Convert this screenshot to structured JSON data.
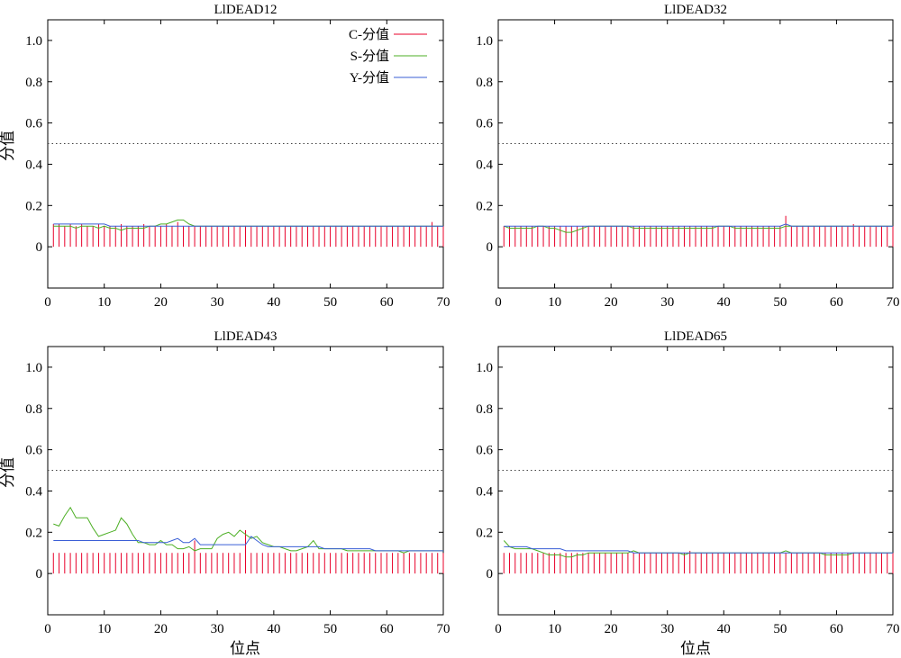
{
  "figure": {
    "ylabel": "分值",
    "xlabel": "位点"
  },
  "legend": {
    "items": [
      {
        "label": "C-分值",
        "color": "#e8002a"
      },
      {
        "label": "S-分值",
        "color": "#4caf24"
      },
      {
        "label": "Y-分值",
        "color": "#3a5fd6"
      }
    ]
  },
  "chart_data": [
    {
      "type": "line",
      "title": "LlDEAD12",
      "xlim": [
        0,
        70
      ],
      "ylim": [
        -0.2,
        1.1
      ],
      "xticks": [
        0,
        10,
        20,
        30,
        40,
        50,
        60,
        70
      ],
      "yticks": [
        0,
        0.2,
        0.4,
        0.6,
        0.8,
        1.0
      ],
      "ytick_labels": [
        "0",
        "0.2",
        "0.4",
        "0.6",
        "0.8",
        "1.0"
      ],
      "threshold": 0.5,
      "x_start": 1,
      "series": [
        {
          "name": "C-分值",
          "type": "stem",
          "color": "#e8002a",
          "values": [
            0.11,
            0.11,
            0.1,
            0.11,
            0.1,
            0.11,
            0.1,
            0.1,
            0.11,
            0.1,
            0.1,
            0.1,
            0.11,
            0.1,
            0.1,
            0.1,
            0.11,
            0.1,
            0.1,
            0.1,
            0.11,
            0.1,
            0.12,
            0.1,
            0.1,
            0.1,
            0.1,
            0.1,
            0.1,
            0.1,
            0.1,
            0.1,
            0.1,
            0.1,
            0.1,
            0.1,
            0.1,
            0.1,
            0.1,
            0.1,
            0.1,
            0.1,
            0.1,
            0.1,
            0.1,
            0.1,
            0.1,
            0.1,
            0.1,
            0.1,
            0.1,
            0.1,
            0.1,
            0.1,
            0.1,
            0.1,
            0.1,
            0.1,
            0.1,
            0.1,
            0.1,
            0.1,
            0.1,
            0.1,
            0.1,
            0.1,
            0.1,
            0.12,
            0.1,
            0.1
          ]
        },
        {
          "name": "S-分值",
          "type": "line",
          "color": "#4caf24",
          "values": [
            0.1,
            0.1,
            0.1,
            0.1,
            0.09,
            0.1,
            0.1,
            0.1,
            0.09,
            0.1,
            0.09,
            0.09,
            0.08,
            0.09,
            0.09,
            0.09,
            0.09,
            0.1,
            0.1,
            0.11,
            0.11,
            0.12,
            0.13,
            0.13,
            0.11,
            0.1,
            0.1,
            0.1,
            0.1,
            0.1,
            0.1,
            0.1,
            0.1,
            0.1,
            0.1,
            0.1,
            0.1,
            0.1,
            0.1,
            0.1,
            0.1,
            0.1,
            0.1,
            0.1,
            0.1,
            0.1,
            0.1,
            0.1,
            0.1,
            0.1,
            0.1,
            0.1,
            0.1,
            0.1,
            0.1,
            0.1,
            0.1,
            0.1,
            0.1,
            0.1,
            0.1,
            0.1,
            0.1,
            0.1,
            0.1,
            0.1,
            0.1,
            0.1,
            0.1,
            0.1
          ]
        },
        {
          "name": "Y-分值",
          "type": "line",
          "color": "#3a5fd6",
          "values": [
            0.11,
            0.11,
            0.11,
            0.11,
            0.11,
            0.11,
            0.11,
            0.11,
            0.11,
            0.11,
            0.1,
            0.1,
            0.1,
            0.1,
            0.1,
            0.1,
            0.1,
            0.1,
            0.1,
            0.1,
            0.1,
            0.1,
            0.1,
            0.1,
            0.1,
            0.1,
            0.1,
            0.1,
            0.1,
            0.1,
            0.1,
            0.1,
            0.1,
            0.1,
            0.1,
            0.1,
            0.1,
            0.1,
            0.1,
            0.1,
            0.1,
            0.1,
            0.1,
            0.1,
            0.1,
            0.1,
            0.1,
            0.1,
            0.1,
            0.1,
            0.1,
            0.1,
            0.1,
            0.1,
            0.1,
            0.1,
            0.1,
            0.1,
            0.1,
            0.1,
            0.1,
            0.1,
            0.1,
            0.1,
            0.1,
            0.1,
            0.1,
            0.1,
            0.1,
            0.1
          ]
        }
      ]
    },
    {
      "type": "line",
      "title": "LlDEAD32",
      "xlim": [
        0,
        70
      ],
      "ylim": [
        -0.2,
        1.1
      ],
      "xticks": [
        0,
        10,
        20,
        30,
        40,
        50,
        60,
        70
      ],
      "yticks": [
        0,
        0.2,
        0.4,
        0.6,
        0.8,
        1.0
      ],
      "ytick_labels": [
        "0",
        "0.2",
        "0.4",
        "0.6",
        "0.8",
        "1.0"
      ],
      "threshold": 0.5,
      "x_start": 1,
      "series": [
        {
          "name": "C-分值",
          "type": "stem",
          "color": "#e8002a",
          "values": [
            0.1,
            0.1,
            0.1,
            0.1,
            0.1,
            0.1,
            0.1,
            0.1,
            0.1,
            0.1,
            0.1,
            0.1,
            0.1,
            0.1,
            0.1,
            0.1,
            0.1,
            0.1,
            0.1,
            0.1,
            0.1,
            0.1,
            0.1,
            0.1,
            0.1,
            0.1,
            0.1,
            0.1,
            0.1,
            0.1,
            0.1,
            0.1,
            0.1,
            0.1,
            0.1,
            0.1,
            0.1,
            0.1,
            0.1,
            0.1,
            0.1,
            0.1,
            0.1,
            0.1,
            0.1,
            0.1,
            0.1,
            0.1,
            0.1,
            0.1,
            0.15,
            0.1,
            0.1,
            0.1,
            0.1,
            0.1,
            0.1,
            0.1,
            0.1,
            0.1,
            0.1,
            0.1,
            0.11,
            0.1,
            0.1,
            0.1,
            0.1,
            0.1,
            0.1,
            0.1
          ]
        },
        {
          "name": "S-分值",
          "type": "line",
          "color": "#4caf24",
          "values": [
            0.1,
            0.09,
            0.09,
            0.09,
            0.09,
            0.09,
            0.1,
            0.1,
            0.09,
            0.09,
            0.08,
            0.07,
            0.07,
            0.08,
            0.09,
            0.1,
            0.1,
            0.1,
            0.1,
            0.1,
            0.1,
            0.1,
            0.1,
            0.09,
            0.09,
            0.09,
            0.09,
            0.09,
            0.09,
            0.09,
            0.09,
            0.09,
            0.09,
            0.09,
            0.09,
            0.09,
            0.09,
            0.09,
            0.1,
            0.1,
            0.1,
            0.09,
            0.09,
            0.09,
            0.09,
            0.09,
            0.09,
            0.09,
            0.09,
            0.09,
            0.1,
            0.1,
            0.1,
            0.1,
            0.1,
            0.1,
            0.1,
            0.1,
            0.1,
            0.1,
            0.1,
            0.1,
            0.1,
            0.1,
            0.1,
            0.1,
            0.1,
            0.1,
            0.1,
            0.1
          ]
        },
        {
          "name": "Y-分值",
          "type": "line",
          "color": "#3a5fd6",
          "values": [
            0.1,
            0.1,
            0.1,
            0.1,
            0.1,
            0.1,
            0.1,
            0.1,
            0.1,
            0.1,
            0.1,
            0.1,
            0.1,
            0.1,
            0.1,
            0.1,
            0.1,
            0.1,
            0.1,
            0.1,
            0.1,
            0.1,
            0.1,
            0.1,
            0.1,
            0.1,
            0.1,
            0.1,
            0.1,
            0.1,
            0.1,
            0.1,
            0.1,
            0.1,
            0.1,
            0.1,
            0.1,
            0.1,
            0.1,
            0.1,
            0.1,
            0.1,
            0.1,
            0.1,
            0.1,
            0.1,
            0.1,
            0.1,
            0.1,
            0.1,
            0.11,
            0.1,
            0.1,
            0.1,
            0.1,
            0.1,
            0.1,
            0.1,
            0.1,
            0.1,
            0.1,
            0.1,
            0.1,
            0.1,
            0.1,
            0.1,
            0.1,
            0.1,
            0.1,
            0.1
          ]
        }
      ]
    },
    {
      "type": "line",
      "title": "LlDEAD43",
      "xlim": [
        0,
        70
      ],
      "ylim": [
        -0.2,
        1.1
      ],
      "xticks": [
        0,
        10,
        20,
        30,
        40,
        50,
        60,
        70
      ],
      "yticks": [
        0,
        0.2,
        0.4,
        0.6,
        0.8,
        1.0
      ],
      "ytick_labels": [
        "0",
        "0.2",
        "0.4",
        "0.6",
        "0.8",
        "1.0"
      ],
      "threshold": 0.5,
      "x_start": 1,
      "series": [
        {
          "name": "C-分值",
          "type": "stem",
          "color": "#e8002a",
          "values": [
            0.1,
            0.1,
            0.1,
            0.1,
            0.1,
            0.1,
            0.1,
            0.1,
            0.1,
            0.1,
            0.1,
            0.1,
            0.1,
            0.1,
            0.1,
            0.1,
            0.1,
            0.1,
            0.1,
            0.1,
            0.1,
            0.1,
            0.1,
            0.1,
            0.1,
            0.16,
            0.1,
            0.1,
            0.1,
            0.1,
            0.1,
            0.1,
            0.1,
            0.1,
            0.21,
            0.1,
            0.1,
            0.1,
            0.1,
            0.1,
            0.1,
            0.1,
            0.1,
            0.1,
            0.1,
            0.1,
            0.1,
            0.1,
            0.1,
            0.1,
            0.1,
            0.1,
            0.1,
            0.1,
            0.1,
            0.1,
            0.1,
            0.1,
            0.1,
            0.1,
            0.1,
            0.1,
            0.1,
            0.1,
            0.1,
            0.1,
            0.1,
            0.1,
            0.1,
            0.1
          ]
        },
        {
          "name": "S-分值",
          "type": "line",
          "color": "#4caf24",
          "values": [
            0.24,
            0.23,
            0.28,
            0.32,
            0.27,
            0.27,
            0.27,
            0.22,
            0.18,
            0.19,
            0.2,
            0.21,
            0.27,
            0.24,
            0.19,
            0.15,
            0.15,
            0.14,
            0.14,
            0.16,
            0.14,
            0.14,
            0.12,
            0.12,
            0.13,
            0.11,
            0.12,
            0.12,
            0.12,
            0.17,
            0.19,
            0.2,
            0.18,
            0.21,
            0.19,
            0.17,
            0.18,
            0.15,
            0.14,
            0.13,
            0.13,
            0.12,
            0.11,
            0.11,
            0.12,
            0.13,
            0.16,
            0.12,
            0.12,
            0.12,
            0.12,
            0.12,
            0.11,
            0.11,
            0.11,
            0.11,
            0.11,
            0.11,
            0.11,
            0.11,
            0.11,
            0.11,
            0.1,
            0.11,
            0.11,
            0.11,
            0.11,
            0.11,
            0.11,
            0.11
          ]
        },
        {
          "name": "Y-分值",
          "type": "line",
          "color": "#3a5fd6",
          "values": [
            0.16,
            0.16,
            0.16,
            0.16,
            0.16,
            0.16,
            0.16,
            0.16,
            0.16,
            0.16,
            0.16,
            0.16,
            0.16,
            0.16,
            0.16,
            0.16,
            0.15,
            0.15,
            0.15,
            0.15,
            0.15,
            0.16,
            0.17,
            0.15,
            0.15,
            0.17,
            0.14,
            0.14,
            0.14,
            0.14,
            0.14,
            0.14,
            0.14,
            0.14,
            0.14,
            0.18,
            0.16,
            0.14,
            0.13,
            0.13,
            0.13,
            0.13,
            0.13,
            0.13,
            0.13,
            0.13,
            0.13,
            0.13,
            0.12,
            0.12,
            0.12,
            0.12,
            0.12,
            0.12,
            0.12,
            0.12,
            0.12,
            0.11,
            0.11,
            0.11,
            0.11,
            0.11,
            0.11,
            0.11,
            0.11,
            0.11,
            0.11,
            0.11,
            0.11,
            0.11
          ]
        }
      ]
    },
    {
      "type": "line",
      "title": "LlDEAD65",
      "xlim": [
        0,
        70
      ],
      "ylim": [
        -0.2,
        1.1
      ],
      "xticks": [
        0,
        10,
        20,
        30,
        40,
        50,
        60,
        70
      ],
      "yticks": [
        0,
        0.2,
        0.4,
        0.6,
        0.8,
        1.0
      ],
      "ytick_labels": [
        "0",
        "0.2",
        "0.4",
        "0.6",
        "0.8",
        "1.0"
      ],
      "threshold": 0.5,
      "x_start": 1,
      "series": [
        {
          "name": "C-分值",
          "type": "stem",
          "color": "#e8002a",
          "values": [
            0.1,
            0.1,
            0.1,
            0.1,
            0.1,
            0.1,
            0.1,
            0.1,
            0.1,
            0.1,
            0.1,
            0.1,
            0.1,
            0.1,
            0.1,
            0.1,
            0.1,
            0.1,
            0.1,
            0.1,
            0.1,
            0.1,
            0.1,
            0.1,
            0.1,
            0.1,
            0.1,
            0.1,
            0.1,
            0.1,
            0.1,
            0.1,
            0.1,
            0.11,
            0.1,
            0.1,
            0.1,
            0.1,
            0.1,
            0.1,
            0.1,
            0.1,
            0.1,
            0.1,
            0.1,
            0.1,
            0.1,
            0.1,
            0.1,
            0.1,
            0.1,
            0.1,
            0.1,
            0.1,
            0.1,
            0.1,
            0.1,
            0.1,
            0.1,
            0.1,
            0.1,
            0.1,
            0.1,
            0.1,
            0.1,
            0.1,
            0.1,
            0.1,
            0.1,
            0.1
          ]
        },
        {
          "name": "S-分值",
          "type": "line",
          "color": "#4caf24",
          "values": [
            0.16,
            0.13,
            0.12,
            0.12,
            0.12,
            0.12,
            0.11,
            0.1,
            0.09,
            0.09,
            0.09,
            0.08,
            0.08,
            0.09,
            0.09,
            0.1,
            0.1,
            0.1,
            0.1,
            0.1,
            0.1,
            0.1,
            0.1,
            0.11,
            0.1,
            0.1,
            0.1,
            0.1,
            0.1,
            0.1,
            0.1,
            0.1,
            0.09,
            0.1,
            0.1,
            0.1,
            0.1,
            0.1,
            0.1,
            0.1,
            0.1,
            0.1,
            0.1,
            0.1,
            0.1,
            0.1,
            0.1,
            0.1,
            0.1,
            0.1,
            0.11,
            0.1,
            0.1,
            0.1,
            0.1,
            0.1,
            0.1,
            0.09,
            0.09,
            0.09,
            0.09,
            0.09,
            0.1,
            0.1,
            0.1,
            0.1,
            0.1,
            0.1,
            0.1,
            0.1
          ]
        },
        {
          "name": "Y-分值",
          "type": "line",
          "color": "#3a5fd6",
          "values": [
            0.13,
            0.13,
            0.13,
            0.13,
            0.13,
            0.12,
            0.12,
            0.12,
            0.12,
            0.12,
            0.12,
            0.11,
            0.11,
            0.11,
            0.11,
            0.11,
            0.11,
            0.11,
            0.11,
            0.11,
            0.11,
            0.11,
            0.11,
            0.1,
            0.1,
            0.1,
            0.1,
            0.1,
            0.1,
            0.1,
            0.1,
            0.1,
            0.1,
            0.1,
            0.1,
            0.1,
            0.1,
            0.1,
            0.1,
            0.1,
            0.1,
            0.1,
            0.1,
            0.1,
            0.1,
            0.1,
            0.1,
            0.1,
            0.1,
            0.1,
            0.1,
            0.1,
            0.1,
            0.1,
            0.1,
            0.1,
            0.1,
            0.1,
            0.1,
            0.1,
            0.1,
            0.1,
            0.1,
            0.1,
            0.1,
            0.1,
            0.1,
            0.1,
            0.1,
            0.1
          ]
        }
      ]
    }
  ]
}
